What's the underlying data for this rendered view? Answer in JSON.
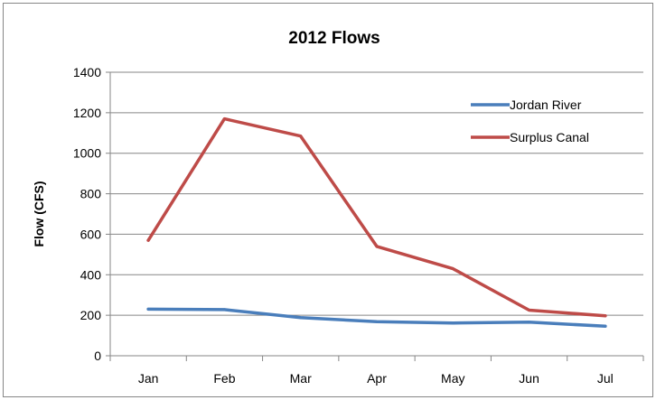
{
  "chart_data": {
    "type": "line",
    "title": "2012 Flows",
    "xlabel": "",
    "ylabel": "Flow (CFS)",
    "categories": [
      "Jan",
      "Feb",
      "Mar",
      "Apr",
      "May",
      "Jun",
      "Jul"
    ],
    "ylim": [
      0,
      1400
    ],
    "yticks": [
      "0",
      "200",
      "400",
      "600",
      "800",
      "1000",
      "1200",
      "1400"
    ],
    "grid": true,
    "legend_position": "top-right",
    "series": [
      {
        "name": "Jordan River",
        "color": "#4a7ebb",
        "values": [
          230,
          228,
          188,
          168,
          162,
          166,
          146
        ]
      },
      {
        "name": "Surplus Canal",
        "color": "#be4b48",
        "values": [
          570,
          1170,
          1085,
          540,
          430,
          225,
          197
        ]
      }
    ]
  }
}
